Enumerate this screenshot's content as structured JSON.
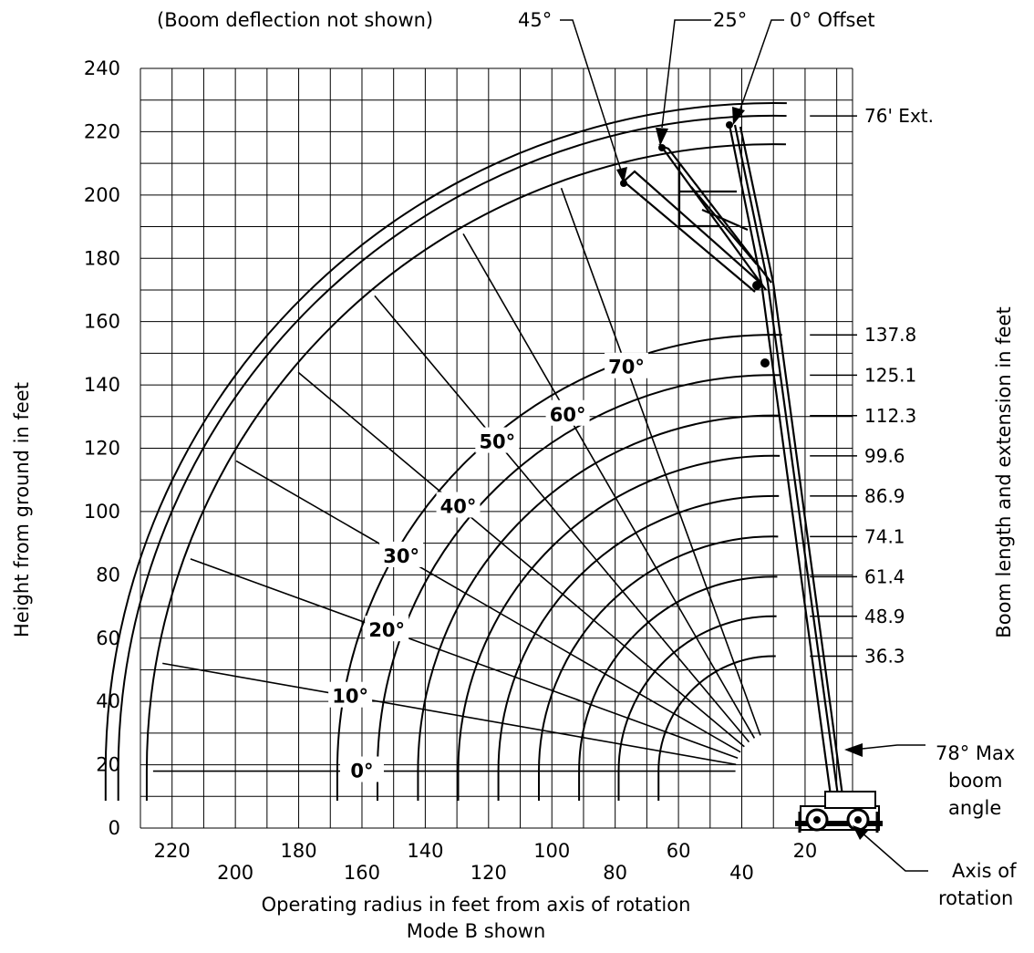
{
  "chart_data": {
    "type": "range-diagram",
    "title": "(Boom deflection not shown)",
    "xlabel": "Operating radius in feet from axis of rotation",
    "xlabel_sub": "Mode B shown",
    "ylabel": "Height from ground in feet",
    "y2label": "Boom length and extension in feet",
    "xlim": [
      220,
      0
    ],
    "ylim": [
      0,
      240
    ],
    "x_ticks_upper": [
      "220",
      "180",
      "140",
      "100",
      "60",
      "20"
    ],
    "x_ticks_lower": [
      "200",
      "160",
      "120",
      "80",
      "40"
    ],
    "y_ticks": [
      "0",
      "20",
      "40",
      "60",
      "80",
      "100",
      "120",
      "140",
      "160",
      "180",
      "200",
      "220",
      "240"
    ],
    "grid": true,
    "pivot": {
      "x": 25,
      "y": 18
    },
    "boom_lengths": [
      {
        "label": "36.3",
        "value": 36.3
      },
      {
        "label": "48.9",
        "value": 48.9
      },
      {
        "label": "61.4",
        "value": 61.4
      },
      {
        "label": "74.1",
        "value": 74.1
      },
      {
        "label": "86.9",
        "value": 86.9
      },
      {
        "label": "99.6",
        "value": 99.6
      },
      {
        "label": "112.3",
        "value": 112.3
      },
      {
        "label": "125.1",
        "value": 125.1
      },
      {
        "label": "137.8",
        "value": 137.8
      }
    ],
    "extension_arcs": [
      {
        "label": "76' Ext.",
        "radius": 207
      },
      {
        "radius": 211
      },
      {
        "radius": 198
      }
    ],
    "boom_angles": [
      {
        "label": "0°",
        "deg": 0
      },
      {
        "label": "10°",
        "deg": 10
      },
      {
        "label": "20°",
        "deg": 20
      },
      {
        "label": "30°",
        "deg": 30
      },
      {
        "label": "40°",
        "deg": 40
      },
      {
        "label": "50°",
        "deg": 50
      },
      {
        "label": "60°",
        "deg": 60
      },
      {
        "label": "70°",
        "deg": 70
      }
    ],
    "offset_callouts": [
      "45°",
      "25°",
      "0° Offset"
    ],
    "max_angle_callout": [
      "78° Max",
      "boom",
      "angle"
    ],
    "axis_callout": [
      "Axis of",
      "rotation"
    ]
  }
}
